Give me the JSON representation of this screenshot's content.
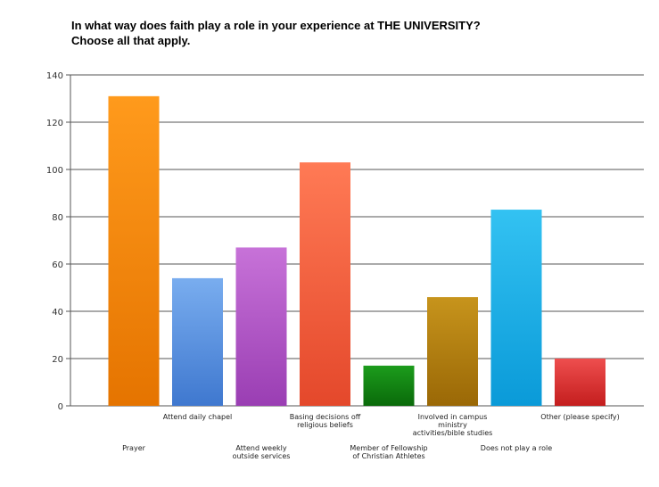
{
  "chart_data": {
    "type": "bar",
    "title_lines": [
      "In what way does faith play a role in your experience at THE UNIVERSITY?",
      "Choose all that apply."
    ],
    "categories": [
      "Prayer",
      "Attend daily chapel",
      "Attend weekly outside services",
      "Basing decisions off religious beliefs",
      "Member of Fellowship of Christian Athletes",
      "Involved in campus ministry activities/bible studies",
      "Does not play a role",
      "Other (please specify)"
    ],
    "category_label_lines": [
      [
        "Prayer"
      ],
      [
        "Attend daily chapel"
      ],
      [
        "Attend weekly",
        "outside services"
      ],
      [
        "Basing decisions off",
        "religious beliefs"
      ],
      [
        "Member of Fellowship",
        "of Christian Athletes"
      ],
      [
        "Involved in campus",
        "ministry",
        "activities/bible studies"
      ],
      [
        "Does not play a role"
      ],
      [
        "Other (please specify)"
      ]
    ],
    "values": [
      131,
      54,
      67,
      103,
      17,
      46,
      83,
      20
    ],
    "colors": [
      [
        "#ff9a1c",
        "#e57400"
      ],
      [
        "#79adef",
        "#3f78cf"
      ],
      [
        "#c772d8",
        "#9a3eb3"
      ],
      [
        "#ff7a55",
        "#e4482b"
      ],
      [
        "#1c9c1c",
        "#0a6a0a"
      ],
      [
        "#c7941c",
        "#9a6806"
      ],
      [
        "#33c2f2",
        "#0a9ad8"
      ],
      [
        "#ee4e4e",
        "#c41e1e"
      ]
    ],
    "ylim": [
      0,
      140
    ],
    "yticks": [
      0,
      20,
      40,
      60,
      80,
      100,
      120,
      140
    ],
    "grid": true
  }
}
